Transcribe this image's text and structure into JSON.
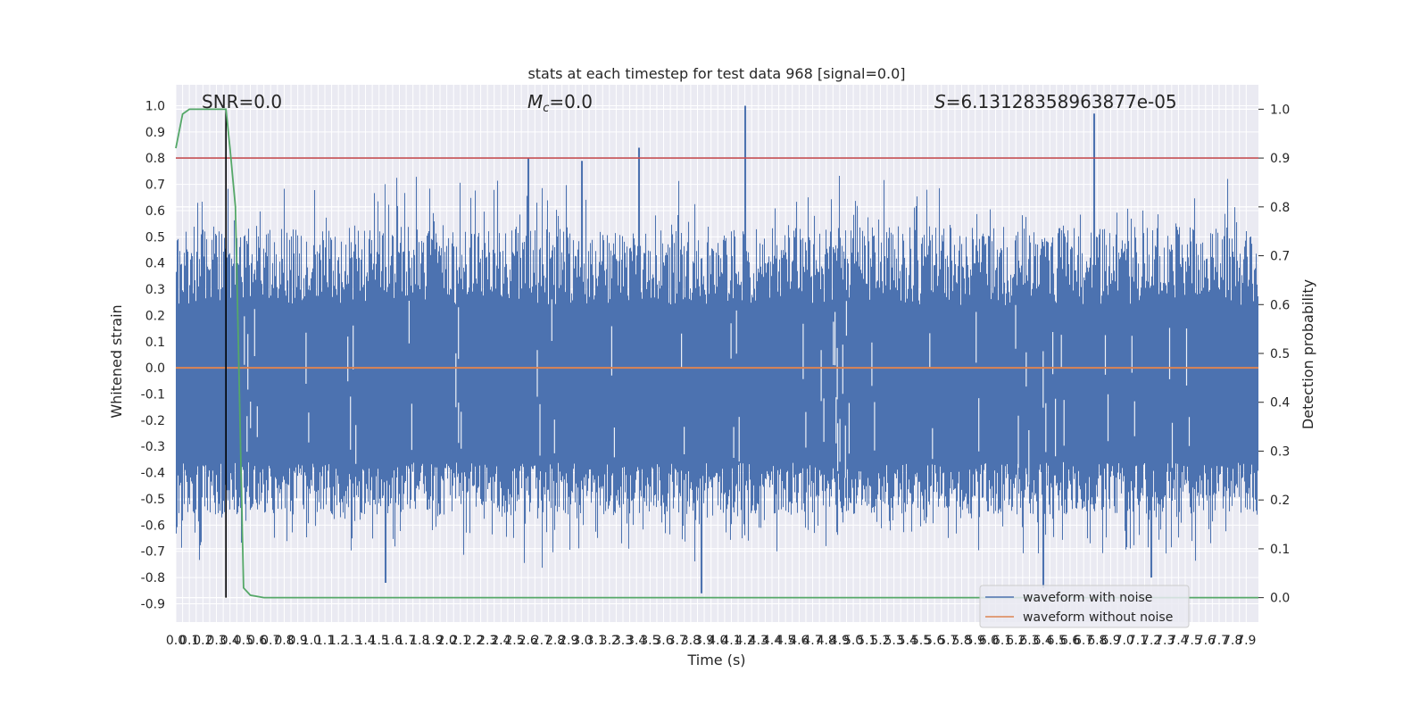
{
  "chart_data": {
    "type": "line",
    "title": "stats at each timestep for test data 968 [signal=0.0]",
    "xlabel": "Time (s)",
    "ylabel_left": "Whitened strain",
    "ylabel_right": "Detection probability",
    "grid": true,
    "legend_placement": "lower-right",
    "colors": {
      "waveform_with_noise": "#4c72b0",
      "waveform_without_noise": "#dd8452",
      "detection_probability": "#55a868",
      "threshold": "#c44e52",
      "marker": "#000000",
      "axes_background": "#eaeaf2"
    },
    "x_axis": {
      "lim": [
        0,
        7.99
      ],
      "tick_start": 0.0,
      "tick_step": 0.05,
      "tick_count": 159,
      "tick_labels": [
        "0.0",
        "0.1",
        "0.2",
        "0.3",
        "0.4",
        "0.5",
        "0.6",
        "0.7",
        "0.8",
        "0.9",
        "1.0",
        "1.1",
        "1.2",
        "1.3",
        "1.4",
        "1.5",
        "1.6",
        "1.7",
        "1.8",
        "1.9",
        "2.0",
        "2.1",
        "2.2",
        "2.3",
        "2.4",
        "2.5",
        "2.6",
        "2.7",
        "2.8",
        "2.9",
        "3.0",
        "3.1",
        "3.2",
        "3.3",
        "3.4",
        "3.5",
        "3.6",
        "3.7",
        "3.8",
        "3.9",
        "4.0",
        "4.1",
        "4.2",
        "4.3",
        "4.4",
        "4.5",
        "4.6",
        "4.7",
        "4.8",
        "4.9",
        "5.0",
        "5.1",
        "5.2",
        "5.3",
        "5.4",
        "5.5",
        "5.6",
        "5.7",
        "5.8",
        "5.9",
        "6.0",
        "6.1",
        "6.2",
        "6.3",
        "6.4",
        "6.5",
        "6.6",
        "6.7",
        "6.8",
        "6.9",
        "7.0",
        "7.1",
        "7.2",
        "7.3",
        "7.4",
        "7.5",
        "7.6",
        "7.7",
        "7.8",
        "7.9"
      ]
    },
    "y_axis_left": {
      "lim": [
        -0.97,
        1.08
      ],
      "tick_labels": [
        "-0.9",
        "-0.8",
        "-0.7",
        "-0.6",
        "-0.5",
        "-0.4",
        "-0.3",
        "-0.2",
        "-0.1",
        "0.0",
        "0.1",
        "0.2",
        "0.3",
        "0.4",
        "0.5",
        "0.6",
        "0.7",
        "0.8",
        "0.9",
        "1.0"
      ],
      "tick_values": [
        -0.9,
        -0.8,
        -0.7,
        -0.6,
        -0.5,
        -0.4,
        -0.3,
        -0.2,
        -0.1,
        0.0,
        0.1,
        0.2,
        0.3,
        0.4,
        0.5,
        0.6,
        0.7,
        0.8,
        0.9,
        1.0
      ]
    },
    "y_axis_right": {
      "lim": [
        -0.05,
        1.05
      ],
      "tick_labels": [
        "0.0",
        "0.1",
        "0.2",
        "0.3",
        "0.4",
        "0.5",
        "0.6",
        "0.7",
        "0.8",
        "0.9",
        "1.0"
      ],
      "tick_values": [
        0.0,
        0.1,
        0.2,
        0.3,
        0.4,
        0.5,
        0.6,
        0.7,
        0.8,
        0.9,
        1.0
      ]
    },
    "annotations": {
      "snr": "SNR=0.0",
      "mc_symbol": "M",
      "mc_subscript": "c",
      "mc_value": "=0.0",
      "s_symbol": "S",
      "s_value": "=6.13128358963877e-05"
    },
    "legend": [
      {
        "label": "waveform with noise",
        "color": "#4c72b0"
      },
      {
        "label": "waveform without noise",
        "color": "#dd8452"
      }
    ],
    "series": [
      {
        "name": "waveform with noise",
        "axis": "left",
        "description_range": [
          -0.86,
          1.0
        ],
        "peaks": [
          {
            "x": 4.2,
            "y": 1.0
          },
          {
            "x": 6.78,
            "y": 0.97
          },
          {
            "x": 3.42,
            "y": 0.84
          },
          {
            "x": 2.6,
            "y": 0.8
          },
          {
            "x": 3.0,
            "y": 0.79
          },
          {
            "x": 3.88,
            "y": -0.86
          },
          {
            "x": 6.4,
            "y": -0.84
          },
          {
            "x": 7.2,
            "y": -0.8
          },
          {
            "x": 1.55,
            "y": -0.82
          }
        ]
      },
      {
        "name": "waveform without noise",
        "axis": "left",
        "x": [
          0.0,
          7.99
        ],
        "values": [
          0.0,
          0.0
        ]
      },
      {
        "name": "detection probability",
        "axis": "right",
        "x": [
          0.0,
          0.05,
          0.1,
          0.15,
          0.2,
          0.25,
          0.3,
          0.37,
          0.4,
          0.44,
          0.5,
          0.55,
          0.65,
          7.99
        ],
        "values": [
          0.92,
          0.99,
          1.0,
          1.0,
          1.0,
          1.0,
          1.0,
          1.0,
          0.92,
          0.8,
          0.02,
          0.005,
          0.0,
          0.0
        ]
      }
    ],
    "reference_lines": {
      "threshold_probability": 0.9,
      "marker_time": 0.37
    }
  }
}
